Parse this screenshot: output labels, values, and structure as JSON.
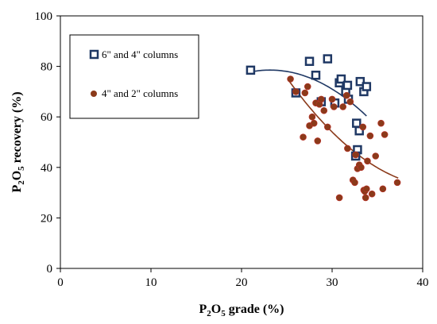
{
  "chart_data": {
    "type": "scatter",
    "xlabel": {
      "base": "P",
      "sub1": "2",
      "mid": "O",
      "sub2": "5",
      "rest": " grade (%)"
    },
    "ylabel": {
      "base": "P",
      "sub1": "2",
      "mid": "O",
      "sub2": "5",
      "rest": " recovery (%)"
    },
    "xlim": [
      0,
      40
    ],
    "ylim": [
      0,
      100
    ],
    "xticks": [
      "0",
      "10",
      "20",
      "30",
      "40"
    ],
    "yticks": [
      "0",
      "20",
      "40",
      "60",
      "80",
      "100"
    ],
    "grid": false,
    "legend_position": "top-left (inside)",
    "series": [
      {
        "name": "6\" and 4\" columns",
        "marker": "open-square",
        "color": "#1f3864",
        "trendline_color": "#1f3864",
        "trendline": {
          "type": "polynomial",
          "degree": 2,
          "x_range": [
            21,
            33.8
          ]
        },
        "points": [
          [
            21.0,
            78.5
          ],
          [
            26.0,
            69.5
          ],
          [
            27.5,
            82.0
          ],
          [
            28.2,
            76.5
          ],
          [
            28.8,
            66.0
          ],
          [
            29.5,
            83.0
          ],
          [
            30.3,
            65.5
          ],
          [
            30.8,
            73.5
          ],
          [
            31.0,
            75.0
          ],
          [
            31.5,
            70.0
          ],
          [
            31.7,
            72.5
          ],
          [
            31.8,
            67.0
          ],
          [
            32.7,
            57.5
          ],
          [
            32.8,
            47.0
          ],
          [
            32.6,
            44.5
          ],
          [
            33.0,
            54.5
          ],
          [
            33.1,
            74.0
          ],
          [
            33.5,
            70.0
          ],
          [
            33.8,
            72.0
          ]
        ]
      },
      {
        "name": "4\" and 2\" columns",
        "marker": "filled-circle",
        "color": "#8b3a1a",
        "trendline_color": "#8b3a1a",
        "trendline": {
          "type": "polynomial",
          "degree": 2,
          "x_range": [
            25.3,
            37.3
          ]
        },
        "points": [
          [
            25.4,
            75.0
          ],
          [
            26.0,
            70.0
          ],
          [
            26.8,
            52.0
          ],
          [
            27.0,
            69.5
          ],
          [
            27.3,
            72.0
          ],
          [
            27.5,
            56.5
          ],
          [
            27.8,
            60.0
          ],
          [
            28.0,
            57.5
          ],
          [
            28.2,
            65.5
          ],
          [
            28.4,
            50.5
          ],
          [
            28.6,
            65.0
          ],
          [
            28.8,
            67.0
          ],
          [
            29.1,
            62.5
          ],
          [
            29.5,
            56.0
          ],
          [
            30.0,
            67.0
          ],
          [
            30.2,
            64.0
          ],
          [
            30.8,
            28.0
          ],
          [
            31.2,
            64.0
          ],
          [
            31.6,
            68.5
          ],
          [
            31.7,
            47.5
          ],
          [
            32.0,
            66.0
          ],
          [
            32.3,
            35.0
          ],
          [
            32.5,
            34.0
          ],
          [
            32.6,
            45.0
          ],
          [
            32.8,
            39.5
          ],
          [
            33.0,
            41.0
          ],
          [
            33.2,
            40.0
          ],
          [
            33.4,
            56.0
          ],
          [
            33.5,
            31.0
          ],
          [
            33.6,
            30.5
          ],
          [
            33.7,
            28.0
          ],
          [
            33.8,
            31.5
          ],
          [
            33.9,
            42.5
          ],
          [
            34.2,
            52.5
          ],
          [
            34.4,
            29.5
          ],
          [
            34.8,
            44.5
          ],
          [
            35.4,
            57.5
          ],
          [
            35.6,
            31.5
          ],
          [
            35.8,
            53.0
          ],
          [
            37.2,
            34.0
          ]
        ]
      }
    ]
  }
}
